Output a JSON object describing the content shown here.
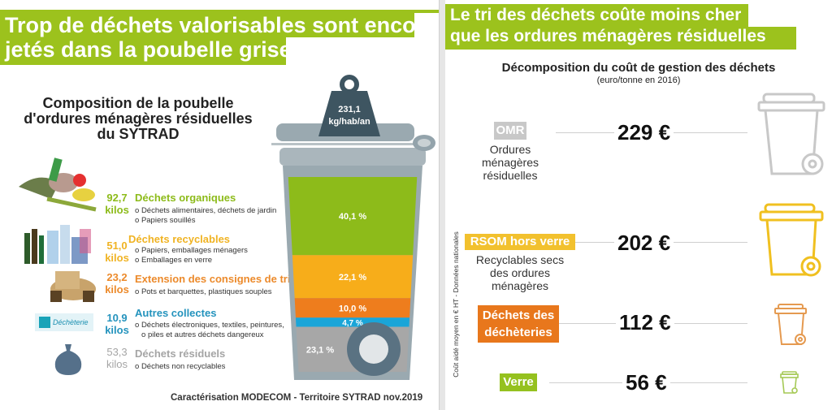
{
  "left": {
    "banner": {
      "line1": "Trop de déchets valorisables sont encore",
      "line2": "jetés dans la poubelle grise"
    },
    "title": {
      "line1": "Composition de la poubelle",
      "line2": "d'ordures ménagères résiduelles",
      "line3": "du SYTRAD"
    },
    "weight": {
      "value": "231,1",
      "unit": "kg/hab/an"
    },
    "dechetterie_logo": "Déchèterie",
    "source": "Caractérisation MODECOM - Territoire SYTRAD nov.2019"
  },
  "right": {
    "banner": {
      "line1": "Le tri des déchets coûte moins cher",
      "line2": "que les ordures ménagères résiduelles"
    },
    "title": "Décomposition du coût de gestion des déchets",
    "subtitle": "(euro/tonne en 2016)",
    "vertical_note": "Coût aidé moyen en € HT - Données nationales"
  },
  "chart_data": [
    {
      "type": "bar",
      "title": "Composition de la poubelle d'ordures ménagères résiduelles du SYTRAD",
      "total": "231,1 kg/hab/an",
      "stacked": true,
      "categories": [
        {
          "name": "Déchets organiques",
          "amount": "92,7",
          "unit": "kilos",
          "percent_label": "40,1 %",
          "percent": 40.1,
          "color": "#8dbb1a",
          "text_color": "#8dbb1a",
          "items": [
            "Déchets alimentaires, déchets de jardin",
            "Papiers souillés"
          ]
        },
        {
          "name": "Déchets recyclables",
          "amount": "51,0",
          "unit": "kilos",
          "percent_label": "22,1 %",
          "percent": 22.1,
          "color": "#f7ad1a",
          "text_color": "#f0b323",
          "items": [
            "Papiers, emballages ménagers",
            "Emballages en verre"
          ]
        },
        {
          "name": "Extension des consignes de tri",
          "amount": "23,2",
          "unit": "kilos",
          "percent_label": "10,0 %",
          "percent": 10.0,
          "color": "#ee7d1d",
          "text_color": "#ec8a2b",
          "items": [
            "Pots et barquettes, plastiques souples"
          ]
        },
        {
          "name": "Autres collectes",
          "amount": "10,9",
          "unit": "kilos",
          "percent_label": "4,7 %",
          "percent": 4.7,
          "color": "#1aa5d8",
          "text_color": "#2493bd",
          "items": [
            "Déchets électroniques, textiles, peintures,",
            "piles et autres déchets dangereux"
          ]
        },
        {
          "name": "Déchets résiduels",
          "amount": "53,3",
          "unit": "kilos",
          "percent_label": "23,1 %",
          "percent": 23.1,
          "color": "#a7a7a7",
          "text_color": "#a5a5a5",
          "items": [
            "Déchets non recyclables"
          ]
        }
      ]
    },
    {
      "type": "table",
      "title": "Décomposition du coût de gestion des déchets",
      "subtitle": "(euro/tonne en 2016)",
      "unit": "€",
      "rows": [
        {
          "tag": "OMR",
          "description": [
            "Ordures",
            "ménagères",
            "résiduelles"
          ],
          "value": 229,
          "label": "229 €",
          "color": "#c8c8c8"
        },
        {
          "tag": "RSOM hors verre",
          "description": [
            "Recyclables secs",
            "des ordures",
            "ménagères"
          ],
          "value": 202,
          "label": "202 €",
          "color": "#f2c12e"
        },
        {
          "tag_lines": [
            "Déchets des",
            "déchèteries"
          ],
          "description": [],
          "value": 112,
          "label": "112 €",
          "color": "#e8771c"
        },
        {
          "tag": "Verre",
          "description": [],
          "value": 56,
          "label": "56 €",
          "color": "#95c11f"
        }
      ]
    }
  ]
}
